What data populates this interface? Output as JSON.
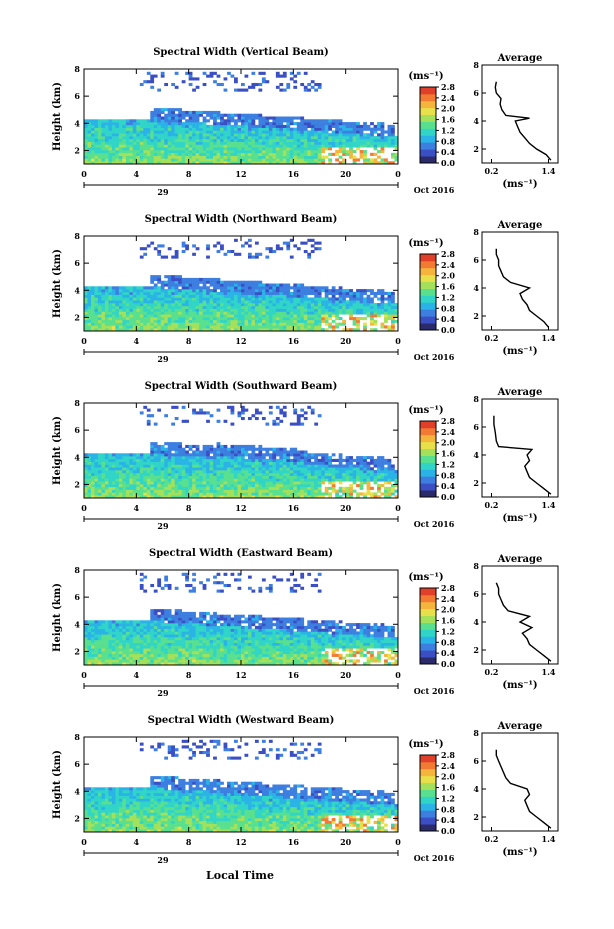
{
  "figure": {
    "xlabel": "Local Time"
  },
  "common": {
    "ylabel": "Height (km)",
    "unit_label": "(ms⁻¹)",
    "avg_title": "Average",
    "avg_xlabel": "(ms⁻¹)",
    "day_label": "29",
    "month_label": "Oct 2016",
    "colorbar_ticks": [
      "0.0",
      "0.4",
      "0.8",
      "1.2",
      "1.6",
      "2.0",
      "2.4",
      "2.8"
    ]
  },
  "colors": {
    "colormap": [
      "#2b2b6b",
      "#3b4fc4",
      "#3d7fe0",
      "#2ab3e6",
      "#30d5c8",
      "#58e08f",
      "#a5e05a",
      "#e8e04a",
      "#f5b43c",
      "#f27a32",
      "#e0402a"
    ]
  },
  "chart_data": [
    {
      "type": "heatmap",
      "title": "Spectral Width (Vertical Beam)",
      "xlabel": "Local Time",
      "ylabel": "Height (km)",
      "x_ticks": [
        "0",
        "4",
        "8",
        "12",
        "16",
        "20",
        "0"
      ],
      "xlim": [
        0,
        24
      ],
      "y_ticks": [
        "2",
        "4",
        "6",
        "8"
      ],
      "ylim": [
        1,
        8
      ],
      "colorbar": {
        "label": "(ms⁻¹)",
        "range": [
          0,
          2.8
        ]
      },
      "average_profile": {
        "title": "Average",
        "xlabel": "(ms⁻¹)",
        "x_ticks": [
          "0.2",
          "1.4"
        ],
        "y_ticks": [
          "2",
          "4",
          "6",
          "8"
        ],
        "height": [
          1.2,
          1.6,
          2.0,
          2.4,
          2.8,
          3.2,
          3.6,
          4.0,
          4.2,
          4.4,
          4.8,
          5.2,
          5.6,
          6.0,
          6.4,
          6.8
        ],
        "width": [
          1.45,
          1.35,
          1.15,
          1.0,
          0.9,
          0.8,
          0.75,
          0.7,
          1.0,
          0.5,
          0.42,
          0.38,
          0.4,
          0.3,
          0.28,
          0.3
        ]
      }
    },
    {
      "type": "heatmap",
      "title": "Spectral Width (Northward Beam)",
      "xlabel": "Local Time",
      "ylabel": "Height (km)",
      "x_ticks": [
        "0",
        "4",
        "8",
        "12",
        "16",
        "20",
        "0"
      ],
      "xlim": [
        0,
        24
      ],
      "y_ticks": [
        "2",
        "4",
        "6",
        "8"
      ],
      "ylim": [
        1,
        8
      ],
      "colorbar": {
        "label": "(ms⁻¹)",
        "range": [
          0,
          2.8
        ]
      },
      "average_profile": {
        "title": "Average",
        "xlabel": "(ms⁻¹)",
        "x_ticks": [
          "0.2",
          "1.4"
        ],
        "y_ticks": [
          "2",
          "4",
          "6",
          "8"
        ],
        "height": [
          1.2,
          1.6,
          2.0,
          2.4,
          2.8,
          3.2,
          3.6,
          4.0,
          4.4,
          4.8,
          5.2,
          5.6,
          6.0,
          6.4,
          6.8
        ],
        "width": [
          1.4,
          1.3,
          1.15,
          1.0,
          0.95,
          0.85,
          0.8,
          1.0,
          0.6,
          0.45,
          0.4,
          0.35,
          0.35,
          0.3,
          0.3
        ]
      }
    },
    {
      "type": "heatmap",
      "title": "Spectral Width (Southward Beam)",
      "xlabel": "Local Time",
      "ylabel": "Height (km)",
      "x_ticks": [
        "0",
        "4",
        "8",
        "12",
        "16",
        "20",
        "0"
      ],
      "xlim": [
        0,
        24
      ],
      "y_ticks": [
        "2",
        "4",
        "6",
        "8"
      ],
      "ylim": [
        1,
        8
      ],
      "colorbar": {
        "label": "(ms⁻¹)",
        "range": [
          0,
          2.8
        ]
      },
      "average_profile": {
        "title": "Average",
        "xlabel": "(ms⁻¹)",
        "x_ticks": [
          "0.2",
          "1.4"
        ],
        "y_ticks": [
          "2",
          "4",
          "6",
          "8"
        ],
        "height": [
          1.2,
          1.6,
          2.0,
          2.4,
          2.8,
          3.2,
          3.6,
          4.0,
          4.4,
          4.6,
          5.0,
          5.6,
          6.2,
          6.8
        ],
        "width": [
          1.45,
          1.3,
          1.15,
          1.0,
          0.95,
          0.9,
          1.0,
          0.95,
          1.05,
          0.35,
          0.3,
          0.28,
          0.25,
          0.25
        ]
      }
    },
    {
      "type": "heatmap",
      "title": "Spectral Width (Eastward Beam)",
      "xlabel": "Local Time",
      "ylabel": "Height (km)",
      "x_ticks": [
        "0",
        "4",
        "8",
        "12",
        "16",
        "20",
        "0"
      ],
      "xlim": [
        0,
        24
      ],
      "y_ticks": [
        "2",
        "4",
        "6",
        "8"
      ],
      "ylim": [
        1,
        8
      ],
      "colorbar": {
        "label": "(ms⁻¹)",
        "range": [
          0,
          2.8
        ]
      },
      "average_profile": {
        "title": "Average",
        "xlabel": "(ms⁻¹)",
        "x_ticks": [
          "0.2",
          "1.4"
        ],
        "y_ticks": [
          "2",
          "4",
          "6",
          "8"
        ],
        "height": [
          1.2,
          1.6,
          2.0,
          2.4,
          2.8,
          3.2,
          3.6,
          4.0,
          4.4,
          4.8,
          5.2,
          5.6,
          6.0,
          6.4,
          6.8
        ],
        "width": [
          1.45,
          1.3,
          1.15,
          1.0,
          0.95,
          0.85,
          1.05,
          0.8,
          1.0,
          0.55,
          0.45,
          0.4,
          0.35,
          0.35,
          0.3
        ]
      }
    },
    {
      "type": "heatmap",
      "title": "Spectral Width (Westward Beam)",
      "xlabel": "Local Time",
      "ylabel": "Height (km)",
      "x_ticks": [
        "0",
        "4",
        "8",
        "12",
        "16",
        "20",
        "0"
      ],
      "xlim": [
        0,
        24
      ],
      "y_ticks": [
        "2",
        "4",
        "6",
        "8"
      ],
      "ylim": [
        1,
        8
      ],
      "colorbar": {
        "label": "(ms⁻¹)",
        "range": [
          0,
          2.8
        ]
      },
      "average_profile": {
        "title": "Average",
        "xlabel": "(ms⁻¹)",
        "x_ticks": [
          "0.2",
          "1.4"
        ],
        "y_ticks": [
          "2",
          "4",
          "6",
          "8"
        ],
        "height": [
          1.2,
          1.6,
          2.0,
          2.4,
          2.8,
          3.2,
          3.6,
          4.0,
          4.4,
          4.8,
          5.2,
          5.6,
          6.0,
          6.4,
          6.8
        ],
        "width": [
          1.45,
          1.3,
          1.15,
          1.0,
          0.95,
          0.9,
          1.0,
          0.95,
          0.6,
          0.5,
          0.45,
          0.4,
          0.35,
          0.3,
          0.3
        ]
      }
    }
  ]
}
